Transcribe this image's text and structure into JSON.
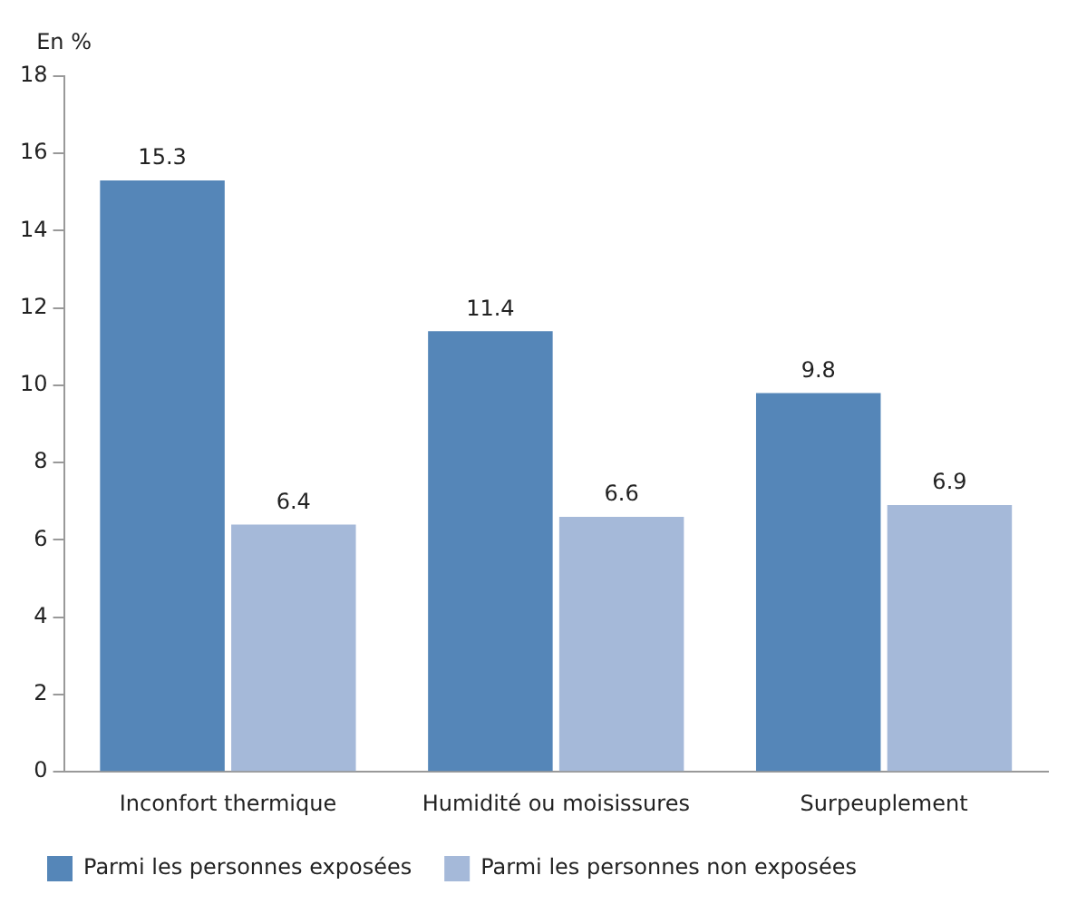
{
  "chart_data": {
    "type": "bar",
    "ylabel": "En %",
    "categories": [
      "Inconfort thermique",
      "Humidité ou moisissures",
      "Surpeuplement"
    ],
    "series": [
      {
        "name": "Parmi les personnes exposées",
        "color": "#5586b8",
        "values": [
          15.3,
          11.4,
          9.8
        ]
      },
      {
        "name": "Parmi les personnes non exposées",
        "color": "#a5b9d9",
        "values": [
          6.4,
          6.6,
          6.9
        ]
      }
    ],
    "ylim": [
      0,
      18
    ],
    "yticks": [
      0,
      2,
      4,
      6,
      8,
      10,
      12,
      14,
      16,
      18
    ],
    "grid": false,
    "legend": "bottom",
    "data_labels": true
  }
}
